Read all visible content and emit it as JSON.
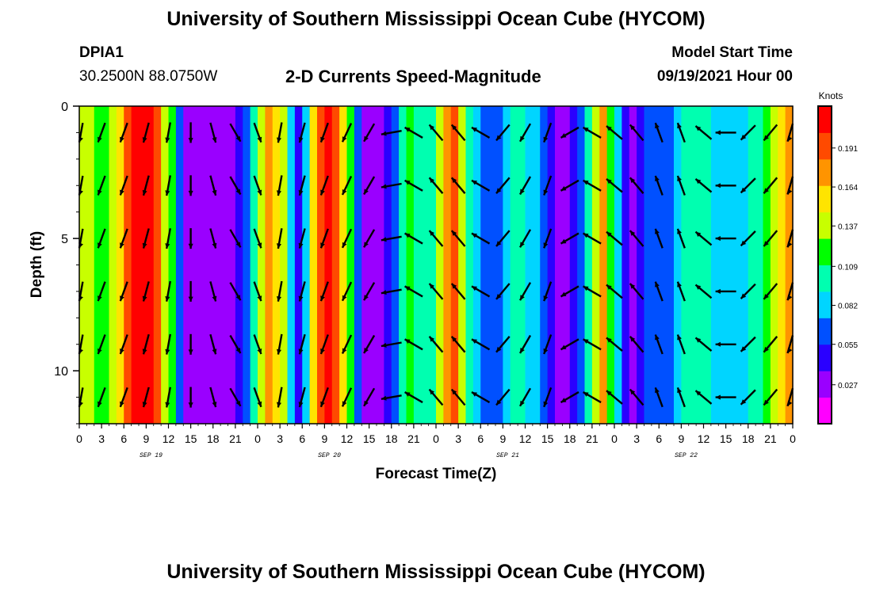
{
  "header": {
    "title": "University of Southern Mississippi Ocean Cube (HYCOM)",
    "station_id": "DPIA1",
    "station_location": "30.2500N  88.0750W",
    "model_start_label": "Model Start Time",
    "model_start_value": "09/19/2021 Hour 00"
  },
  "footer": {
    "title": "University of Southern Mississippi Ocean Cube (HYCOM)"
  },
  "colors": {
    "colormap": [
      "#ff00ff",
      "#9a00ff",
      "#2a00ff",
      "#0050ff",
      "#00d5ff",
      "#00ffb0",
      "#00ff00",
      "#c8ff00",
      "#ffe400",
      "#ff9400",
      "#ff4a00",
      "#ff0000"
    ],
    "arrow": "#000000"
  },
  "chart_data": {
    "type": "heatmap",
    "title": "2-D Currents Speed-Magnitude",
    "xlabel": "Forecast Time(Z)",
    "ylabel": "Depth (ft)",
    "x_tick_labels": [
      "0",
      "3",
      "6",
      "9",
      "12",
      "15",
      "18",
      "21",
      "0",
      "3",
      "6",
      "9",
      "12",
      "15",
      "18",
      "21",
      "0",
      "3",
      "6",
      "9",
      "12",
      "15",
      "18",
      "21",
      "0",
      "3",
      "6",
      "9",
      "12",
      "15",
      "18",
      "21",
      "0"
    ],
    "date_labels": [
      "SEP 19",
      "SEP 20",
      "SEP 21",
      "SEP 22"
    ],
    "xlim_hours": [
      0,
      96
    ],
    "ylim_ft": [
      0,
      12
    ],
    "y_ticks": [
      0,
      5,
      10
    ],
    "y_tick_labels": [
      "0",
      "5",
      "10"
    ],
    "colorbar": {
      "title": "Knots",
      "ticks": [
        0.027,
        0.055,
        0.082,
        0.109,
        0.137,
        0.164,
        0.191
      ],
      "tick_labels": [
        "0.027",
        "0.055",
        "0.082",
        "0.109",
        "0.137",
        "0.164",
        "0.191"
      ],
      "range": [
        0,
        0.22
      ]
    },
    "speed_by_hour_knots": [
      0.14,
      0.13,
      0.12,
      0.11,
      0.13,
      0.16,
      0.19,
      0.21,
      0.21,
      0.21,
      0.19,
      0.15,
      0.11,
      0.06,
      0.02,
      0.01,
      0.01,
      0.01,
      0.01,
      0.01,
      0.02,
      0.03,
      0.06,
      0.1,
      0.15,
      0.18,
      0.16,
      0.13,
      0.08,
      0.04,
      0.08,
      0.16,
      0.2,
      0.21,
      0.19,
      0.16,
      0.12,
      0.06,
      0.02,
      0.02,
      0.02,
      0.03,
      0.06,
      0.09,
      0.11,
      0.1,
      0.09,
      0.1,
      0.14,
      0.17,
      0.19,
      0.14,
      0.09,
      0.07,
      0.06,
      0.06,
      0.06,
      0.08,
      0.1,
      0.09,
      0.08,
      0.07,
      0.05,
      0.03,
      0.02,
      0.02,
      0.03,
      0.06,
      0.1,
      0.14,
      0.17,
      0.12,
      0.07,
      0.03,
      0.02,
      0.03,
      0.05,
      0.06,
      0.06,
      0.06,
      0.08,
      0.1,
      0.1,
      0.1,
      0.09,
      0.08,
      0.08,
      0.08,
      0.08,
      0.08,
      0.09,
      0.1,
      0.12,
      0.14,
      0.16,
      0.17,
      0.18
    ],
    "vector_times_hours": [
      0,
      3,
      6,
      9,
      12,
      15,
      18,
      21,
      24,
      27,
      30,
      33,
      36,
      39,
      42,
      45,
      48,
      51,
      54,
      57,
      60,
      63,
      66,
      69,
      72,
      75,
      78,
      81,
      84,
      87,
      90,
      93,
      96
    ],
    "vector_depths_ft": [
      1,
      3,
      5,
      7,
      9,
      11
    ],
    "vector_direction_deg_by_time": [
      200,
      200,
      200,
      195,
      190,
      180,
      165,
      150,
      160,
      190,
      195,
      200,
      205,
      210,
      260,
      300,
      320,
      320,
      300,
      220,
      210,
      200,
      240,
      300,
      310,
      320,
      340,
      340,
      310,
      270,
      225,
      220,
      210
    ]
  }
}
